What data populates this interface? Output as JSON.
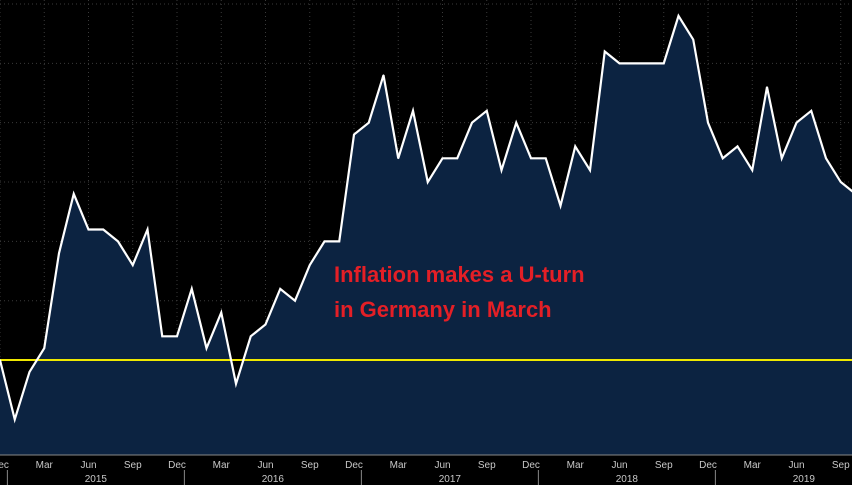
{
  "chart_data": {
    "type": "area",
    "title": "",
    "xlabel": "",
    "ylabel": "",
    "x_start": "2014-12",
    "values": [
      0.0,
      -0.5,
      -0.1,
      0.1,
      0.9,
      1.4,
      1.1,
      1.1,
      1.0,
      0.8,
      1.1,
      0.2,
      0.2,
      0.6,
      0.1,
      0.4,
      -0.2,
      0.2,
      0.3,
      0.6,
      0.5,
      0.8,
      1.0,
      1.0,
      1.9,
      2.0,
      2.4,
      1.7,
      2.1,
      1.5,
      1.7,
      1.7,
      2.0,
      2.1,
      1.6,
      2.0,
      1.7,
      1.7,
      1.3,
      1.8,
      1.6,
      2.6,
      2.5,
      2.5,
      2.5,
      2.5,
      2.9,
      2.7,
      2.0,
      1.7,
      1.8,
      1.6,
      2.3,
      1.7,
      2.0,
      2.1,
      1.7,
      1.5,
      1.4
    ],
    "reference_line": 0.0,
    "ylim": [
      -0.8,
      3.0
    ],
    "grid": true,
    "months": [
      "Dec",
      "Mar",
      "Jun",
      "Sep",
      "Dec",
      "Mar",
      "Jun",
      "Sep",
      "Dec",
      "Mar",
      "Jun",
      "Sep",
      "Dec",
      "Mar",
      "Jun",
      "Sep",
      "Dec",
      "Mar",
      "Jun",
      "Sep"
    ],
    "years": [
      "2015",
      "2016",
      "2017",
      "2018",
      "2019"
    ],
    "annotation_lines": [
      "Inflation makes a U-turn",
      "in Germany in March"
    ],
    "colors": {
      "background": "#000000",
      "area_fill": "#0c2341",
      "line": "#ffffff",
      "reference_line": "#f0e800",
      "annotation": "#e41f26",
      "grid": "#3a3a3a"
    }
  }
}
